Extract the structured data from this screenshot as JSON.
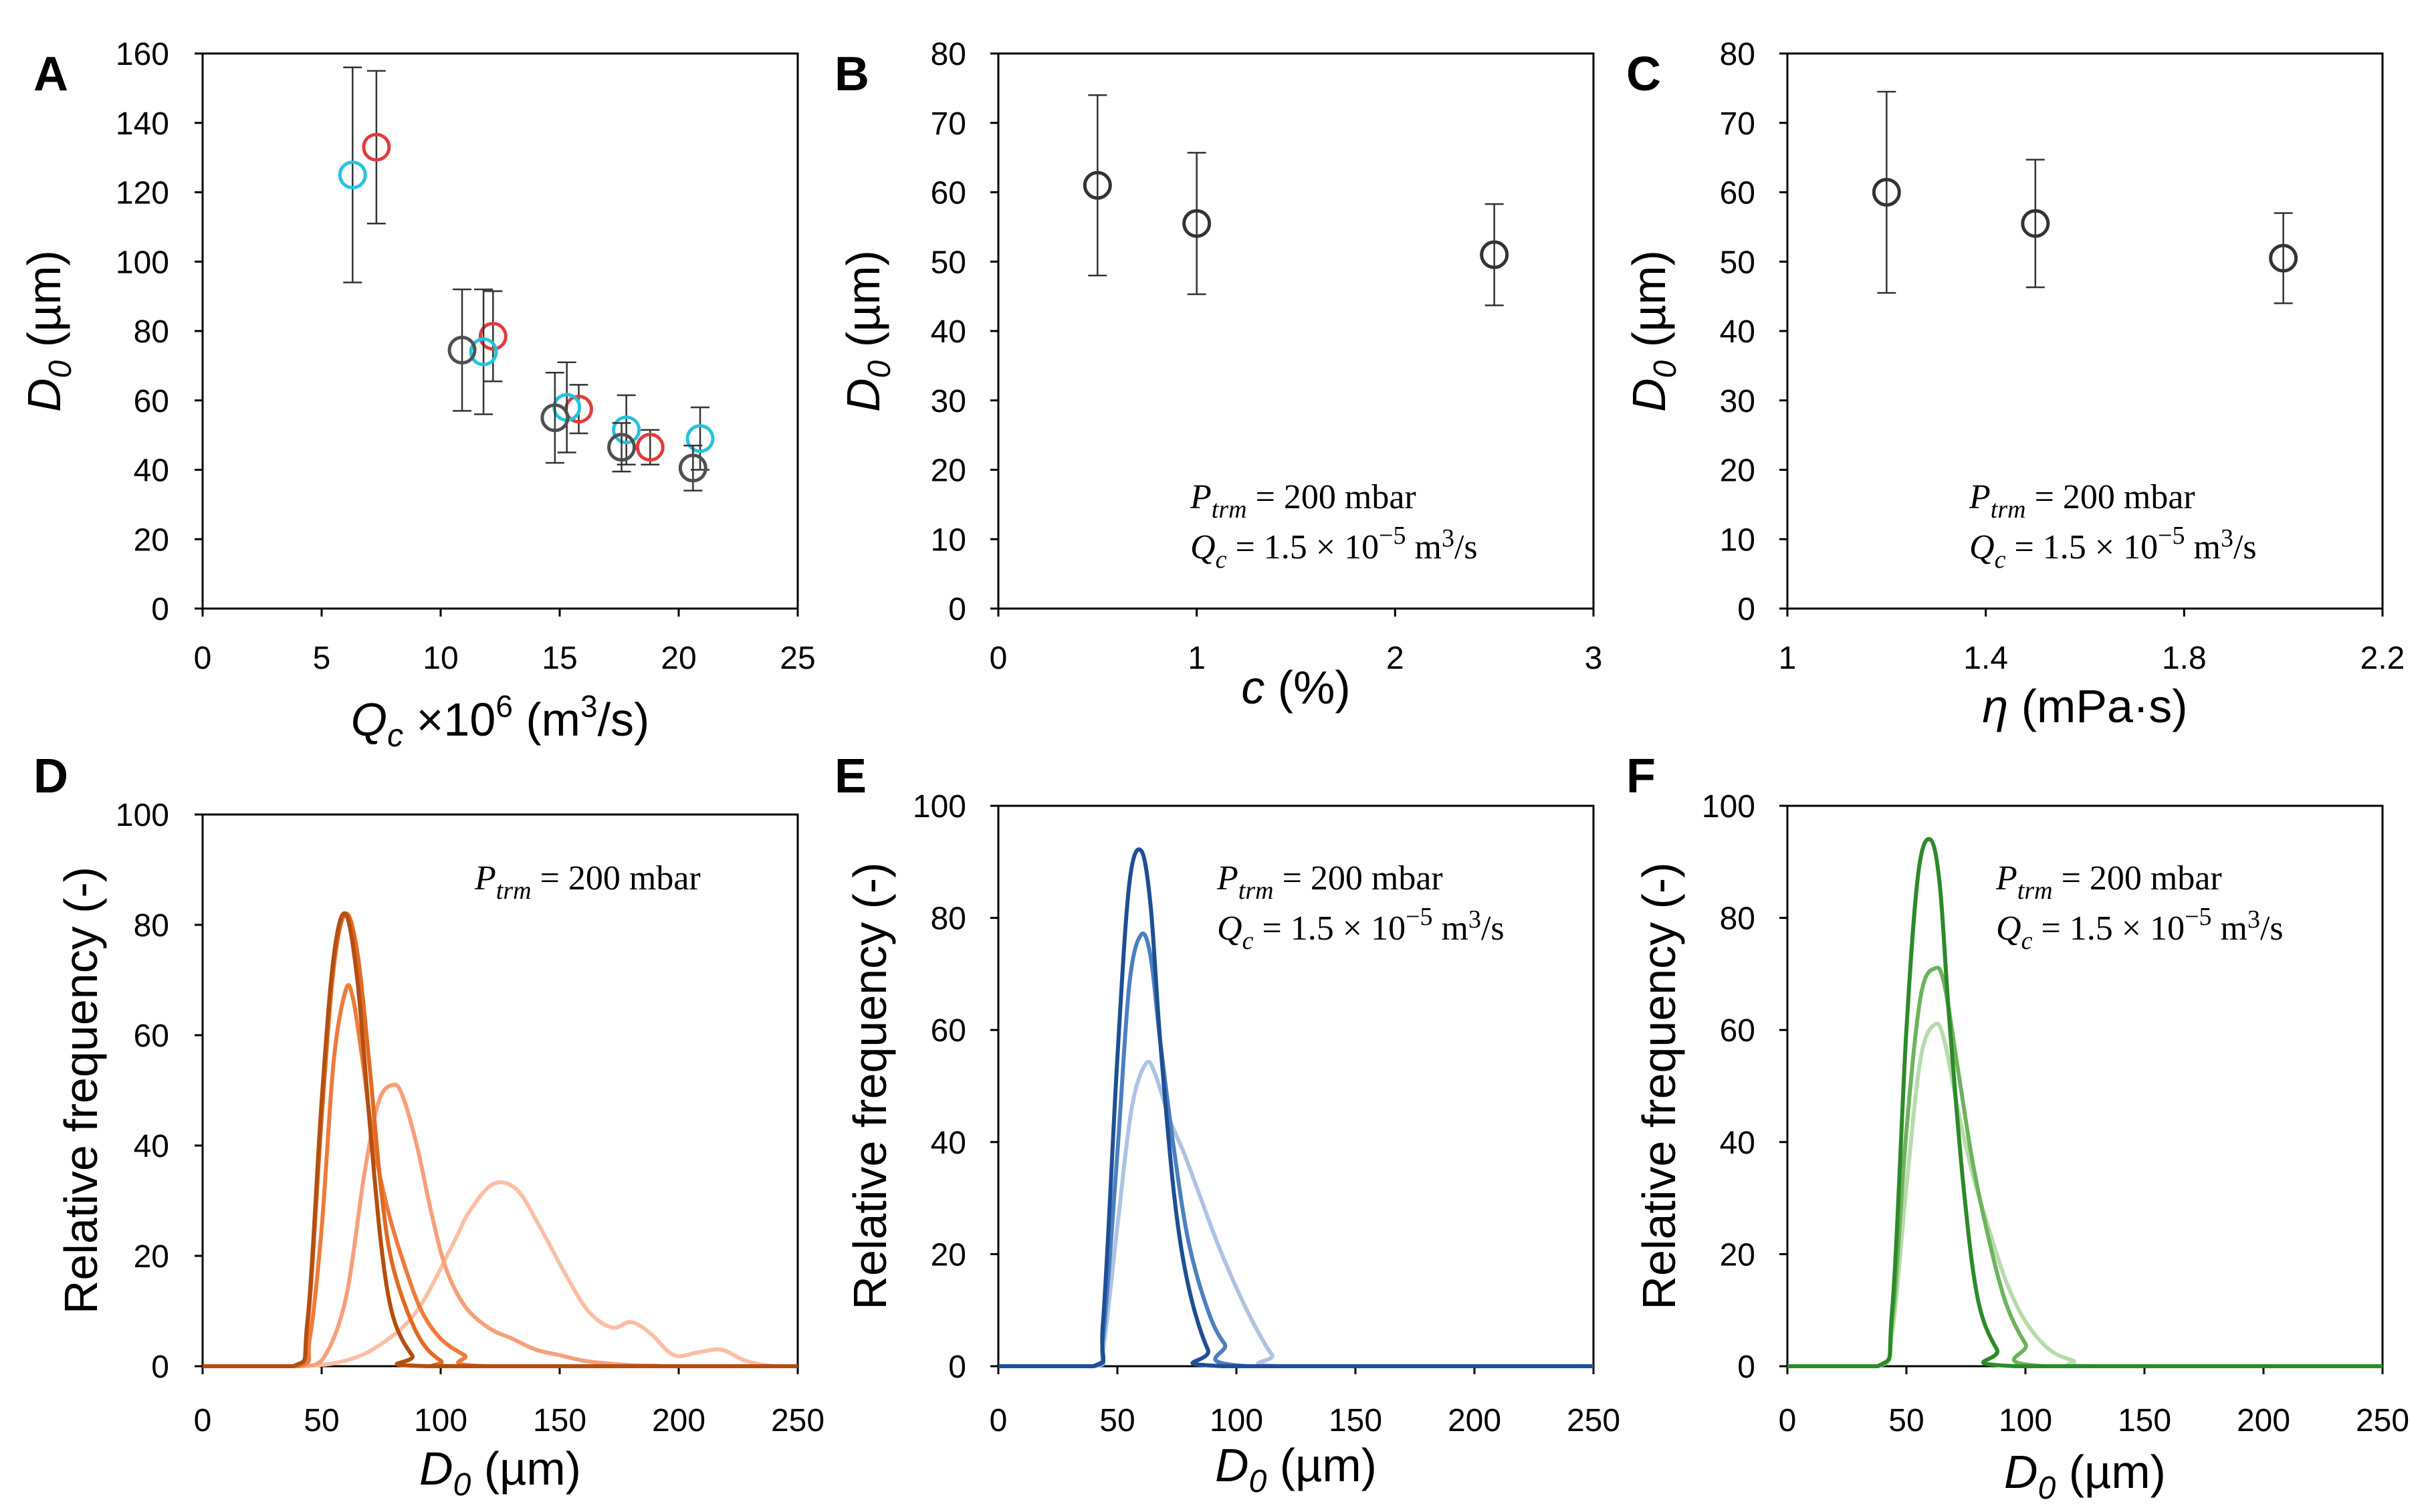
{
  "figure": {
    "panels": [
      "A",
      "B",
      "C",
      "D",
      "E",
      "F"
    ]
  },
  "chart_data": [
    {
      "id": "A",
      "type": "scatter",
      "xlabel": "Q_c ×10^6 (m^3/s)",
      "xlabel_parts": {
        "main": "Q",
        "sub": "c",
        "mid": " ×10",
        "sup1": "6",
        "tail1": " (m",
        "sup2": "3",
        "tail2": "/s)"
      },
      "ylabel": "D_0 (µm)",
      "ylabel_parts": {
        "main": "D",
        "sub": "0",
        "tail": " (µm)"
      },
      "xlim": [
        0,
        25
      ],
      "ylim": [
        0,
        160
      ],
      "xticks": [
        0,
        5,
        10,
        15,
        20,
        25
      ],
      "yticks": [
        0,
        20,
        40,
        60,
        80,
        100,
        120,
        140,
        160
      ],
      "series": [
        {
          "name": "red",
          "color": "#e03c3c",
          "points": [
            {
              "x": 7.3,
              "y": 133,
              "err": 22
            },
            {
              "x": 12.2,
              "y": 78.5,
              "err": 13
            },
            {
              "x": 15.8,
              "y": 57.5,
              "err": 7
            },
            {
              "x": 18.8,
              "y": 46.5,
              "err": 5
            }
          ]
        },
        {
          "name": "cyan",
          "color": "#25c3dd",
          "points": [
            {
              "x": 6.3,
              "y": 125,
              "err": 31
            },
            {
              "x": 11.8,
              "y": 74,
              "err": 18
            },
            {
              "x": 15.3,
              "y": 58,
              "err": 13
            },
            {
              "x": 17.8,
              "y": 51.5,
              "err": 10
            },
            {
              "x": 20.9,
              "y": 49,
              "err": 9
            }
          ]
        },
        {
          "name": "grey",
          "color": "#505050",
          "points": [
            {
              "x": 10.9,
              "y": 74.5,
              "err": 17.5
            },
            {
              "x": 14.8,
              "y": 55,
              "err": 13
            },
            {
              "x": 17.6,
              "y": 46.5,
              "err": 7
            },
            {
              "x": 20.6,
              "y": 40.5,
              "err": 6.5
            }
          ]
        }
      ]
    },
    {
      "id": "B",
      "type": "scatter",
      "xlabel": "c (%)",
      "xlabel_parts": {
        "main": "c",
        "tail": " (%)"
      },
      "ylabel": "D_0 (µm)",
      "ylabel_parts": {
        "main": "D",
        "sub": "0",
        "tail": " (µm)"
      },
      "xlim": [
        0,
        3
      ],
      "ylim": [
        0,
        80
      ],
      "xticks": [
        0,
        1,
        2,
        3
      ],
      "yticks": [
        0,
        10,
        20,
        30,
        40,
        50,
        60,
        70,
        80
      ],
      "annotation": [
        "P_trm = 200 mbar",
        "Q_c = 1.5 × 10^-5 m^3/s"
      ],
      "series": [
        {
          "name": "grey",
          "color": "#333333",
          "points": [
            {
              "x": 0.5,
              "y": 61,
              "err": 13
            },
            {
              "x": 1.0,
              "y": 55.5,
              "err": 10.2
            },
            {
              "x": 2.5,
              "y": 51,
              "err": 7.3
            }
          ]
        }
      ]
    },
    {
      "id": "C",
      "type": "scatter",
      "xlabel": "η (mPa·s)",
      "xlabel_parts": {
        "main": "η",
        "tail": " (mPa·s)"
      },
      "ylabel": "D_0 (µm)",
      "ylabel_parts": {
        "main": "D",
        "sub": "0",
        "tail": " (µm)"
      },
      "xlim": [
        1,
        2.2
      ],
      "ylim": [
        0,
        80
      ],
      "xticks": [
        1,
        1.4,
        1.8,
        2.2
      ],
      "yticks": [
        0,
        10,
        20,
        30,
        40,
        50,
        60,
        70,
        80
      ],
      "annotation": [
        "P_trm = 200 mbar",
        "Q_c = 1.5 × 10^-5 m^3/s"
      ],
      "series": [
        {
          "name": "grey",
          "color": "#333333",
          "points": [
            {
              "x": 1.2,
              "y": 60,
              "err": 14.5
            },
            {
              "x": 1.5,
              "y": 55.5,
              "err": 9.2
            },
            {
              "x": 2.0,
              "y": 50.5,
              "err": 6.5
            }
          ]
        }
      ]
    },
    {
      "id": "D",
      "type": "line",
      "xlabel": "D_0 (µm)",
      "xlabel_parts": {
        "main": "D",
        "sub": "0",
        "tail": " (µm)"
      },
      "ylabel": "Relative frequency (-)",
      "xlim": [
        0,
        250
      ],
      "ylim": [
        0,
        100
      ],
      "xticks": [
        0,
        50,
        100,
        150,
        200,
        250
      ],
      "yticks": [
        0,
        20,
        40,
        60,
        80,
        100
      ],
      "annotation": [
        "P_trm = 200 mbar"
      ],
      "series": [
        {
          "name": "d1",
          "color": "#fbbfa5",
          "x": [
            0,
            40,
            60,
            75,
            90,
            105,
            112,
            122,
            132,
            142,
            152,
            162,
            172,
            180,
            188,
            198,
            208,
            218,
            228,
            240,
            250
          ],
          "y": [
            0,
            0,
            1,
            4,
            10,
            22,
            28,
            33,
            32,
            25,
            17,
            10,
            7,
            8,
            6,
            2,
            2.5,
            3,
            1,
            0,
            0
          ]
        },
        {
          "name": "d2",
          "color": "#f6a07a",
          "x": [
            0,
            40,
            50,
            60,
            68,
            74,
            80,
            84,
            90,
            96,
            102,
            110,
            120,
            130,
            140,
            150,
            160,
            170,
            180,
            190,
            200,
            250
          ],
          "y": [
            0,
            0,
            1,
            12,
            35,
            48,
            51,
            49,
            40,
            28,
            18,
            11,
            7,
            5,
            3,
            2,
            1,
            0.5,
            0.2,
            0.1,
            0,
            0
          ]
        },
        {
          "name": "d3",
          "color": "#ee7b3b",
          "x": [
            0,
            40,
            45,
            50,
            55,
            60,
            63,
            67,
            72,
            78,
            85,
            92,
            100,
            110,
            120,
            250
          ],
          "y": [
            0,
            0,
            5,
            25,
            55,
            68,
            67,
            56,
            40,
            28,
            18,
            10,
            5,
            2,
            0,
            0
          ]
        },
        {
          "name": "d4",
          "color": "#e06b24",
          "x": [
            0,
            38,
            44,
            50,
            55,
            60,
            65,
            70,
            75,
            80,
            90,
            100,
            110,
            250
          ],
          "y": [
            0,
            0,
            7,
            45,
            72,
            82,
            75,
            55,
            32,
            18,
            6,
            1,
            0,
            0
          ]
        },
        {
          "name": "d5",
          "color": "#b34f10",
          "x": [
            0,
            38,
            44,
            50,
            55,
            60,
            65,
            70,
            75,
            80,
            88,
            95,
            250
          ],
          "y": [
            0,
            0,
            8,
            48,
            74,
            82,
            70,
            45,
            22,
            9,
            2,
            0,
            0
          ]
        }
      ]
    },
    {
      "id": "E",
      "type": "line",
      "xlabel": "D_0 (µm)",
      "xlabel_parts": {
        "main": "D",
        "sub": "0",
        "tail": " (µm)"
      },
      "ylabel": "Relative frequency (-)",
      "xlim": [
        0,
        250
      ],
      "ylim": [
        0,
        100
      ],
      "xticks": [
        0,
        50,
        100,
        150,
        200,
        250
      ],
      "yticks": [
        0,
        20,
        40,
        60,
        80,
        100
      ],
      "annotation": [
        "P_trm = 200 mbar",
        "Q_c = 1.5 × 10^-5 m^3/s"
      ],
      "series": [
        {
          "name": "e1",
          "color": "#aec3e3",
          "x": [
            0,
            40,
            44,
            50,
            56,
            62,
            66,
            72,
            78,
            85,
            92,
            100,
            108,
            115,
            120,
            250
          ],
          "y": [
            0,
            0,
            3,
            25,
            46,
            54,
            52,
            44,
            38,
            30,
            22,
            14,
            7,
            2,
            0,
            0
          ]
        },
        {
          "name": "e2",
          "color": "#4c7fc0",
          "x": [
            0,
            40,
            44,
            50,
            55,
            60,
            64,
            68,
            74,
            80,
            88,
            95,
            105,
            250
          ],
          "y": [
            0,
            0,
            5,
            38,
            68,
            77,
            73,
            58,
            38,
            22,
            10,
            4,
            0,
            0
          ]
        },
        {
          "name": "e3",
          "color": "#1e4f94",
          "x": [
            0,
            40,
            44,
            50,
            55,
            60,
            64,
            68,
            74,
            80,
            88,
            95,
            250
          ],
          "y": [
            0,
            0,
            8,
            55,
            86,
            92,
            82,
            58,
            30,
            14,
            3,
            0,
            0
          ]
        }
      ]
    },
    {
      "id": "F",
      "type": "line",
      "xlabel": "D_0 (µm)",
      "xlabel_parts": {
        "main": "D",
        "sub": "0",
        "tail": " (µm)"
      },
      "ylabel": "Relative frequency (-)",
      "xlim": [
        0,
        250
      ],
      "ylim": [
        0,
        100
      ],
      "xticks": [
        0,
        50,
        100,
        150,
        200,
        250
      ],
      "yticks": [
        0,
        20,
        40,
        60,
        80,
        100
      ],
      "annotation": [
        "P_trm = 200 mbar",
        "Q_c = 1.5 × 10^-5 m^3/s"
      ],
      "series": [
        {
          "name": "f1",
          "color": "#b7dcab",
          "x": [
            0,
            38,
            44,
            50,
            56,
            62,
            66,
            72,
            78,
            85,
            92,
            100,
            110,
            120,
            130,
            250
          ],
          "y": [
            0,
            0,
            6,
            32,
            55,
            61,
            58,
            45,
            34,
            24,
            15,
            8,
            3,
            1,
            0,
            0
          ]
        },
        {
          "name": "f2",
          "color": "#6db35c",
          "x": [
            0,
            38,
            44,
            50,
            56,
            62,
            66,
            72,
            78,
            85,
            92,
            100,
            108,
            250
          ],
          "y": [
            0,
            0,
            8,
            42,
            66,
            71,
            68,
            52,
            36,
            22,
            11,
            4,
            0,
            0
          ]
        },
        {
          "name": "f3",
          "color": "#2d8a2a",
          "x": [
            0,
            38,
            44,
            50,
            55,
            60,
            64,
            68,
            74,
            80,
            88,
            96,
            250
          ],
          "y": [
            0,
            0,
            10,
            60,
            88,
            94,
            86,
            62,
            32,
            12,
            3,
            0,
            0
          ]
        }
      ]
    }
  ]
}
